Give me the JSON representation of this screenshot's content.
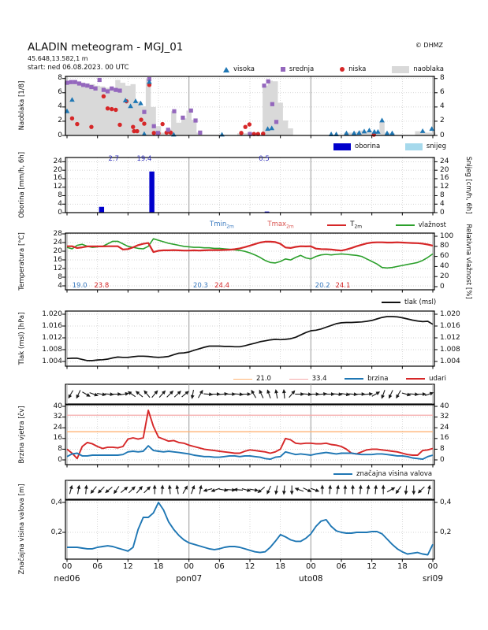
{
  "header": {
    "title": "ALADIN meteogram - MGJ_01",
    "location": "45.648,13.582,1 m",
    "start": "start: ned 06.08.2023. 00 UTC",
    "copyright": "© DHMZ"
  },
  "colors": {
    "visoka": "#1f77b4",
    "srednja": "#9467bd",
    "niska": "#d62728",
    "naoblaka": "#d9d9d9",
    "oborina": "#0000cc",
    "snijeg": "#a6d9ec",
    "t2m": "#d62728",
    "vlaznost": "#2ca02c",
    "tmin_text": "#3a7abf",
    "tmax_text": "#d9534f",
    "tlak": "#111111",
    "thresh21": "#ffb374",
    "thresh33": "#f5a9a9",
    "brzina": "#1f77b4",
    "udari": "#d62728",
    "valovi": "#1f77b4",
    "precip_label": "#3333bb",
    "grid": "#c9c9c9",
    "dayline": "#aaaaaa"
  },
  "legends": {
    "visoka": "visoka",
    "srednja": "srednja",
    "niska": "niska",
    "naoblaka": "naoblaka",
    "oborina": "oborina",
    "snijeg": "snijeg",
    "tmin_pre": "Tmin",
    "tmin_sub": "2m",
    "tmax_pre": "Tmax",
    "tmax_sub": "2m",
    "t2m_pre": "T",
    "t2m_sub": "2m",
    "vlaznost": "vlažnost",
    "tlak": "tlak (msl)",
    "l21": "21.0",
    "l33": "33.4",
    "brzina": "brzina",
    "udari": "udari",
    "valovi": "značajna visina valova"
  },
  "axes_titles": {
    "cloud": "Naoblaka [1/8]",
    "precip_left": "Oborina [mm/h, 6h]",
    "precip_right": "Snijeg [cm/h, 6h]",
    "temp_left": "Temperatura [°C]",
    "temp_right": "Relativna vlažnost [%]",
    "pressure": "Tlak (msl) [hPa]",
    "wind": "Brzina vjetra [čv]",
    "waves": "Značajna visina valova [m]"
  },
  "xaxis": {
    "hour_step": 6,
    "hour_labels": [
      "00",
      "06",
      "12",
      "18",
      "00",
      "06",
      "12",
      "18",
      "00",
      "06",
      "12",
      "18",
      "00"
    ],
    "day_labels": [
      {
        "h": 0,
        "label": "ned06"
      },
      {
        "h": 24,
        "label": "pon07"
      },
      {
        "h": 48,
        "label": "uto08"
      },
      {
        "h": 72,
        "label": "sri09"
      }
    ]
  },
  "chart_data": [
    {
      "id": "cloud",
      "type": "scatter",
      "ylabel": "Naoblaka [1/8]",
      "ylim": [
        0,
        8.3
      ],
      "yticks": [
        [
          0,
          "0"
        ],
        [
          2,
          "2"
        ],
        [
          4,
          "4"
        ],
        [
          6,
          "6"
        ],
        [
          8,
          "8"
        ]
      ],
      "area_naoblaka": [
        7.5,
        7.5,
        7.5,
        7.4,
        7.3,
        7.2,
        7.0,
        6.9,
        6.7,
        6.5,
        7.8,
        7.4,
        7.0,
        7.2,
        4.8,
        4.1,
        8.0,
        4.0,
        1.3,
        0.4,
        0.9,
        3.4,
        1.8,
        2.4,
        3.5,
        2.2,
        0.4,
        0,
        0,
        0,
        0,
        0,
        0,
        0,
        0.3,
        0.3,
        0.3,
        0,
        0,
        7.0,
        7.7,
        7.6,
        4.6,
        2.1,
        1.0,
        0,
        0,
        0,
        0,
        0,
        0,
        0,
        0,
        0,
        0,
        0.4,
        0.4,
        0.5,
        0.7,
        0.6,
        0.5,
        0.5,
        1.9,
        0.4,
        0.3,
        0,
        0,
        0,
        0,
        0.6,
        0.6,
        0.4,
        0.4
      ],
      "visoka": [
        [
          0,
          3.4
        ],
        [
          1,
          5.0
        ],
        [
          11.5,
          4.9
        ],
        [
          12.5,
          4.1
        ],
        [
          13.5,
          4.8
        ],
        [
          14.5,
          4.5
        ],
        [
          15.2,
          0.2
        ],
        [
          16.2,
          7.5
        ],
        [
          21,
          0.1
        ],
        [
          30.5,
          0.1
        ],
        [
          39.5,
          0.9
        ],
        [
          40.3,
          1.0
        ],
        [
          52,
          0.15
        ],
        [
          53,
          0.15
        ],
        [
          55,
          0.3
        ],
        [
          56.5,
          0.3
        ],
        [
          57.5,
          0.35
        ],
        [
          58.5,
          0.55
        ],
        [
          59.5,
          0.7
        ],
        [
          60.5,
          0.5
        ],
        [
          61.2,
          0.5
        ],
        [
          62,
          2.1
        ],
        [
          63,
          0.3
        ],
        [
          64,
          0.3
        ],
        [
          70,
          0.6
        ],
        [
          71.8,
          0.9
        ]
      ],
      "srednja": [
        [
          0,
          7.4
        ],
        [
          0.8,
          7.5
        ],
        [
          1.6,
          7.5
        ],
        [
          2.4,
          7.3
        ],
        [
          3.2,
          7.1
        ],
        [
          4,
          7.0
        ],
        [
          4.8,
          6.8
        ],
        [
          5.6,
          6.6
        ],
        [
          6.4,
          7.8
        ],
        [
          7.2,
          6.4
        ],
        [
          8,
          6.2
        ],
        [
          8.8,
          6.6
        ],
        [
          9.6,
          6.4
        ],
        [
          10.4,
          6.3
        ],
        [
          15.2,
          3.3
        ],
        [
          16.2,
          7.9
        ],
        [
          17.1,
          1.3
        ],
        [
          17.9,
          0.35
        ],
        [
          19.9,
          0.8
        ],
        [
          21.1,
          3.4
        ],
        [
          22.8,
          2.5
        ],
        [
          24.4,
          3.5
        ],
        [
          25.3,
          2.1
        ],
        [
          26.2,
          0.4
        ],
        [
          36,
          0.2
        ],
        [
          38.8,
          7.0
        ],
        [
          39.6,
          7.6
        ],
        [
          40.4,
          4.4
        ],
        [
          41.2,
          1.9
        ]
      ],
      "niska": [
        [
          1,
          2.4
        ],
        [
          2,
          1.6
        ],
        [
          4.8,
          1.2
        ],
        [
          7.2,
          5.5
        ],
        [
          8,
          3.8
        ],
        [
          8.8,
          3.7
        ],
        [
          9.6,
          3.6
        ],
        [
          10.4,
          1.5
        ],
        [
          11.7,
          4.8
        ],
        [
          13,
          1.2
        ],
        [
          13.2,
          0.6
        ],
        [
          13.8,
          0.6
        ],
        [
          14.6,
          2.2
        ],
        [
          15.2,
          1.65
        ],
        [
          16.2,
          7.1
        ],
        [
          17.1,
          0.35
        ],
        [
          18,
          0.3
        ],
        [
          18.8,
          1.6
        ],
        [
          19.6,
          0.4
        ],
        [
          20.4,
          0.4
        ],
        [
          34.3,
          0.35
        ],
        [
          35.1,
          1.2
        ],
        [
          35.9,
          1.55
        ],
        [
          36.8,
          0.2
        ],
        [
          37.6,
          0.2
        ],
        [
          38.6,
          0.25
        ],
        [
          60.4,
          0.1
        ]
      ]
    },
    {
      "id": "precip",
      "type": "bar",
      "ylabel": "Oborina [mm/h, 6h]",
      "ylabel_right": "Snijeg [cm/h, 6h]",
      "ylim": [
        0,
        26
      ],
      "yticks": [
        [
          0,
          "0"
        ],
        [
          4,
          "4"
        ],
        [
          8,
          "8"
        ],
        [
          12,
          "12"
        ],
        [
          16,
          "16"
        ],
        [
          20,
          "20"
        ],
        [
          24,
          "24"
        ]
      ],
      "bars": [
        {
          "h0": 6.3,
          "h1": 7.3,
          "v": 2.7
        },
        {
          "h0": 16.2,
          "h1": 17.2,
          "v": 19.4
        },
        {
          "h0": 38.9,
          "h1": 39.8,
          "v": 0.5
        }
      ],
      "bar_labels": [
        {
          "h": 9.2,
          "label": "2.7"
        },
        {
          "h": 15.2,
          "label": "19.4"
        },
        {
          "h": 38.8,
          "label": "0.5"
        }
      ]
    },
    {
      "id": "temp",
      "type": "line",
      "ylabel": "Temperatura [°C]",
      "ylabel_right": "Relativna vlažnost [%]",
      "yticks": [
        [
          4,
          "4"
        ],
        [
          8,
          "8"
        ],
        [
          12,
          "12"
        ],
        [
          16,
          "16"
        ],
        [
          20,
          "20"
        ],
        [
          24,
          "24"
        ],
        [
          28,
          "28"
        ]
      ],
      "yticks_right": [
        [
          0,
          "0"
        ],
        [
          20,
          "20"
        ],
        [
          40,
          "40"
        ],
        [
          60,
          "60"
        ],
        [
          80,
          "80"
        ],
        [
          100,
          "100"
        ]
      ],
      "t2m": [
        22.3,
        22.3,
        21.5,
        21.8,
        22.2,
        22.2,
        22.2,
        22.2,
        22.3,
        22.3,
        22.3,
        20.8,
        21.0,
        21.8,
        22.8,
        23.4,
        23.8,
        19.6,
        20.2,
        20.4,
        20.4,
        20.5,
        20.4,
        20.3,
        20.3,
        20.4,
        20.3,
        20.4,
        20.5,
        20.5,
        20.5,
        20.6,
        20.7,
        20.9,
        21.3,
        21.9,
        22.6,
        23.3,
        24.0,
        24.4,
        24.4,
        24.2,
        23.4,
        21.7,
        21.5,
        22.0,
        22.3,
        22.2,
        22.3,
        21.2,
        21.0,
        20.9,
        20.8,
        20.5,
        20.3,
        20.8,
        21.5,
        22.3,
        23.0,
        23.6,
        24.0,
        24.1,
        24.1,
        24.0,
        24.0,
        24.1,
        24.0,
        23.9,
        23.8,
        23.7,
        23.5,
        23.1,
        22.6
      ],
      "vlaznost": [
        78,
        75,
        82,
        84,
        80,
        78,
        79,
        80,
        85,
        90,
        90,
        85,
        80,
        78,
        76,
        75,
        80,
        95,
        92,
        89,
        86,
        84,
        82,
        80,
        79,
        78,
        78,
        77,
        77,
        76,
        76,
        75,
        74,
        73,
        72,
        70,
        67,
        63,
        58,
        52,
        48,
        47,
        50,
        55,
        53,
        58,
        62,
        57,
        55,
        60,
        63,
        64,
        63,
        64,
        65,
        64,
        63,
        62,
        60,
        55,
        50,
        45,
        38,
        37,
        38,
        40,
        42,
        44,
        46,
        48,
        52,
        58,
        65
      ],
      "annotations": [
        {
          "h": 2.5,
          "label": "19.0",
          "c": "tmin_text"
        },
        {
          "h": 6.8,
          "label": "23.8",
          "c": "t2m"
        },
        {
          "h": 26.3,
          "label": "20.3",
          "c": "tmin_text"
        },
        {
          "h": 30.5,
          "label": "24.4",
          "c": "t2m"
        },
        {
          "h": 50.3,
          "label": "20.2",
          "c": "tmin_text"
        },
        {
          "h": 54.3,
          "label": "24.1",
          "c": "t2m"
        }
      ]
    },
    {
      "id": "pressure",
      "type": "line",
      "ylabel": "Tlak (msl) [hPa]",
      "yticks": [
        [
          1004,
          "1.004"
        ],
        [
          1008,
          "1.008"
        ],
        [
          1012,
          "1.012"
        ],
        [
          1016,
          "1.016"
        ],
        [
          1020,
          "1.020"
        ]
      ],
      "tlak": [
        1005.0,
        1005.1,
        1005.1,
        1004.7,
        1004.3,
        1004.3,
        1004.5,
        1004.6,
        1004.8,
        1005.2,
        1005.5,
        1005.4,
        1005.4,
        1005.6,
        1005.8,
        1005.8,
        1005.7,
        1005.5,
        1005.4,
        1005.5,
        1005.7,
        1006.3,
        1006.8,
        1006.9,
        1007.2,
        1007.8,
        1008.3,
        1008.8,
        1009.2,
        1009.2,
        1009.2,
        1009.1,
        1009.1,
        1009.0,
        1009.0,
        1009.3,
        1009.8,
        1010.2,
        1010.7,
        1011.0,
        1011.3,
        1011.5,
        1011.4,
        1011.5,
        1011.7,
        1012.2,
        1013.0,
        1013.8,
        1014.4,
        1014.6,
        1015.0,
        1015.6,
        1016.2,
        1016.8,
        1017.1,
        1017.2,
        1017.2,
        1017.3,
        1017.4,
        1017.6,
        1017.9,
        1018.4,
        1018.9,
        1019.2,
        1019.2,
        1019.1,
        1018.8,
        1018.4,
        1018.0,
        1017.7,
        1017.5,
        1017.6,
        1016.6
      ]
    },
    {
      "id": "wind",
      "type": "line",
      "ylabel": "Brzina vjetra [čv]",
      "yticks": [
        [
          0,
          "0"
        ],
        [
          8,
          "8"
        ],
        [
          16,
          "16"
        ],
        [
          24,
          "24"
        ],
        [
          32,
          "32"
        ],
        [
          40,
          "40"
        ]
      ],
      "thresholds": [
        {
          "v": 21.0,
          "c": "thresh21"
        },
        {
          "v": 33.4,
          "c": "thresh33"
        }
      ],
      "brzina": [
        2.5,
        4.5,
        5,
        3,
        3,
        3.5,
        3.5,
        3.5,
        3.5,
        3.5,
        3.5,
        4,
        6,
        6.5,
        6,
        6.5,
        10.5,
        7,
        6.5,
        6,
        6.5,
        6,
        5.5,
        5,
        4.5,
        3.5,
        3,
        2.5,
        2.5,
        2,
        2,
        2.5,
        3,
        3,
        2.5,
        3,
        3,
        2.5,
        2,
        1,
        0.5,
        2,
        2.5,
        6,
        5,
        4,
        4.5,
        4,
        3.5,
        4.5,
        5,
        5.5,
        5,
        4.5,
        5,
        5,
        5,
        4.5,
        4,
        4,
        4,
        4.5,
        4.5,
        4,
        3.5,
        3,
        3,
        2.5,
        1.5,
        1,
        0.5,
        2.5,
        3.5
      ],
      "udari": [
        8,
        5,
        1,
        10,
        13,
        12,
        10,
        8.5,
        9.5,
        9.5,
        9,
        10,
        15.5,
        16.5,
        15.5,
        16.5,
        37,
        25,
        17,
        15.5,
        14,
        14.5,
        13,
        12.5,
        11,
        10,
        9,
        8,
        7.5,
        7,
        6.5,
        6,
        5.5,
        5,
        5,
        6.5,
        7.5,
        7,
        6.5,
        6,
        5,
        6,
        8,
        16,
        15,
        12.5,
        12,
        12.5,
        12.5,
        12,
        12,
        12.5,
        11.5,
        11,
        10,
        8,
        5,
        4.5,
        6,
        7.5,
        8,
        8,
        7.5,
        7,
        6.5,
        6,
        5,
        4,
        3.5,
        3.5,
        7,
        7.5,
        8.5
      ],
      "barb_angles": [
        120,
        115,
        30,
        20,
        10,
        5,
        0,
        -10,
        215,
        220,
        230,
        -50,
        -48,
        -45,
        -43,
        -40,
        100,
        -60,
        5,
        0,
        -5,
        0,
        5,
        0,
        -120,
        -115,
        -110,
        -100,
        -95,
        -50,
        0,
        5,
        0,
        -5,
        0,
        5,
        10,
        5,
        0,
        -5,
        -30,
        110,
        115,
        120,
        15,
        5,
        0,
        -20
      ]
    },
    {
      "id": "waves",
      "type": "line",
      "ylabel": "Značajna visina valova [m]",
      "yticks": [
        [
          0.2,
          "0,2"
        ],
        [
          0.4,
          "0,4"
        ]
      ],
      "valovi": [
        0.1,
        0.1,
        0.1,
        0.095,
        0.09,
        0.09,
        0.1,
        0.105,
        0.11,
        0.105,
        0.095,
        0.085,
        0.075,
        0.1,
        0.22,
        0.3,
        0.3,
        0.33,
        0.4,
        0.35,
        0.27,
        0.22,
        0.18,
        0.15,
        0.13,
        0.12,
        0.11,
        0.1,
        0.09,
        0.085,
        0.09,
        0.1,
        0.105,
        0.105,
        0.1,
        0.09,
        0.08,
        0.07,
        0.065,
        0.07,
        0.1,
        0.14,
        0.185,
        0.17,
        0.15,
        0.14,
        0.14,
        0.16,
        0.19,
        0.24,
        0.275,
        0.285,
        0.24,
        0.21,
        0.2,
        0.195,
        0.195,
        0.2,
        0.2,
        0.2,
        0.205,
        0.205,
        0.19,
        0.155,
        0.12,
        0.09,
        0.07,
        0.055,
        0.06,
        0.065,
        0.055,
        0.05,
        0.12
      ],
      "barb_angles": [
        -75,
        -80,
        -85,
        130,
        135,
        140,
        125,
        -40,
        -45,
        -50,
        -45,
        -90,
        -85,
        -95,
        -100,
        -60,
        -70,
        -80,
        165,
        160,
        10,
        5,
        -175,
        15,
        10,
        140,
        115,
        100,
        95,
        90,
        -160,
        25,
        20,
        -90,
        -85,
        -80,
        -88,
        -90,
        -85,
        -82,
        -85,
        -90,
        -30,
        125,
        95,
        90,
        135,
        -80
      ]
    }
  ]
}
